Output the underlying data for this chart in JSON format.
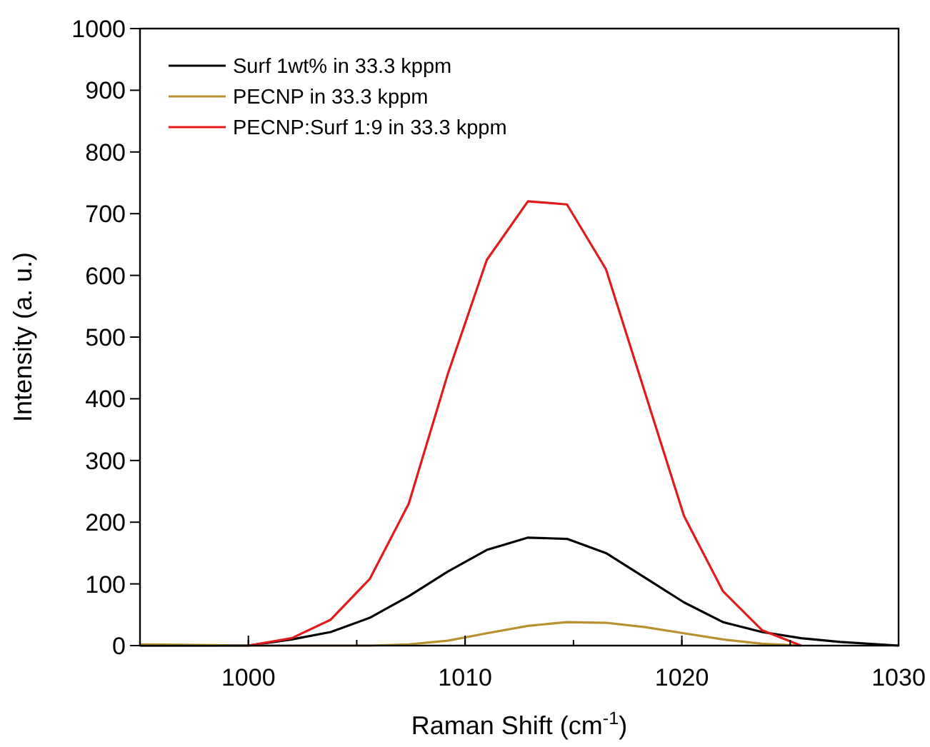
{
  "chart_data": {
    "type": "line",
    "xlabel": "Raman Shift (cm$^{-1}$)",
    "ylabel": "Intensity (a. u.)",
    "xlim": [
      995,
      1030
    ],
    "xticks": [
      1000,
      1010,
      1020,
      1030
    ],
    "ylim": [
      0,
      1000
    ],
    "yticks": [
      0,
      100,
      200,
      300,
      400,
      500,
      600,
      700,
      800,
      900,
      1000
    ],
    "legend": "top left",
    "grid": false,
    "line_style": "solid",
    "marker": "none",
    "series": [
      {
        "name": "Surf 1wt% in 33.3 kppm",
        "color": "#000000",
        "x": [
          995,
          1000,
          1002,
          1003.8,
          1005.6,
          1007.4,
          1009.2,
          1011,
          1012.9,
          1014.7,
          1016.5,
          1018.3,
          1020.1,
          1021.9,
          1023.7,
          1025.5,
          1027.3,
          1030
        ],
        "values": [
          0,
          0,
          10,
          22,
          45,
          80,
          120,
          155,
          175,
          173,
          150,
          110,
          70,
          38,
          22,
          12,
          6,
          0
        ]
      },
      {
        "name": "PECNP in 33.3 kppm",
        "color": "#b8912e",
        "x": [
          995,
          1000,
          1005.6,
          1007.4,
          1009.2,
          1011,
          1012.9,
          1014.7,
          1016.5,
          1018.3,
          1020.1,
          1021.9,
          1023.7,
          1025.5
        ],
        "values": [
          2,
          0,
          0,
          2,
          8,
          20,
          32,
          38,
          37,
          30,
          20,
          10,
          3,
          0
        ]
      },
      {
        "name": "PECNP:Surf 1:9 in 33.3 kppm",
        "color": "#e31a1c",
        "x": [
          1000,
          1002,
          1003.8,
          1005.6,
          1007.4,
          1009.2,
          1011,
          1012.9,
          1014.7,
          1016.5,
          1018.3,
          1020.1,
          1021.9,
          1023.7,
          1025.5
        ],
        "values": [
          0,
          12,
          42,
          108,
          230,
          440,
          625,
          720,
          715,
          610,
          410,
          210,
          88,
          25,
          0
        ]
      }
    ]
  }
}
